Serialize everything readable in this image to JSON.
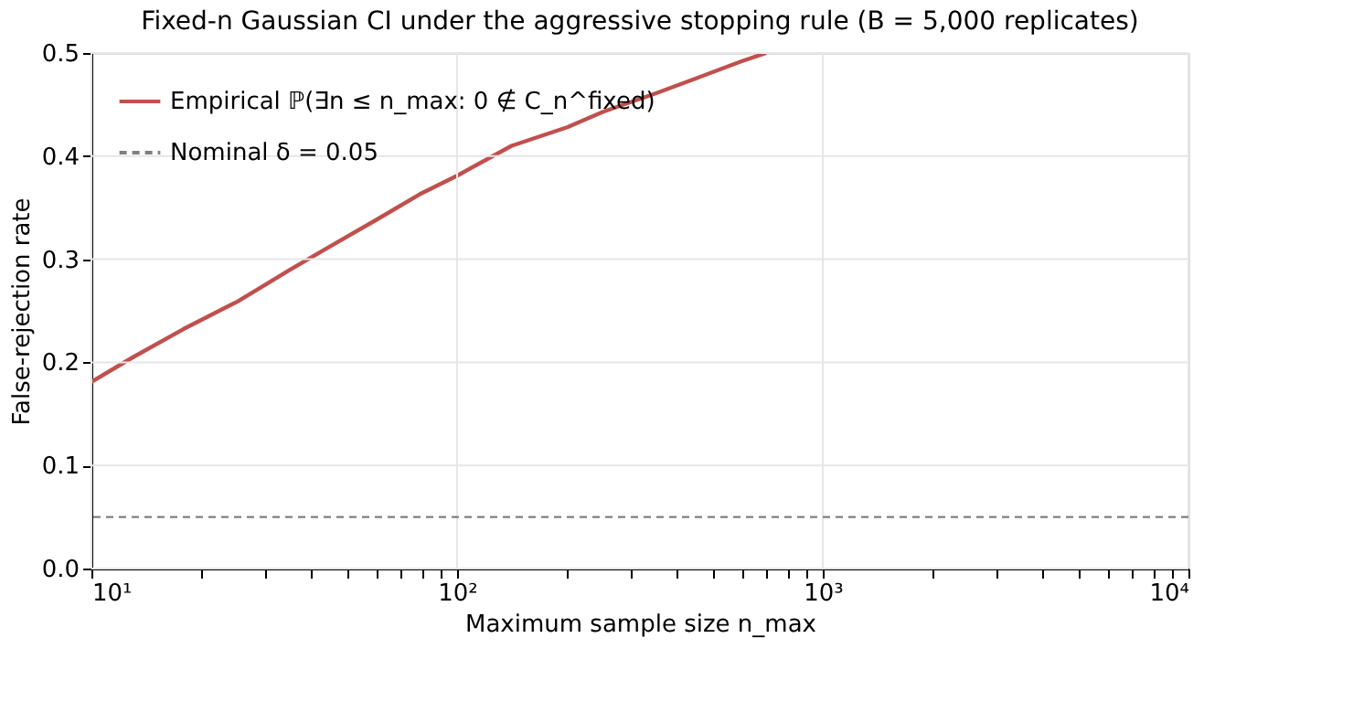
{
  "chart_data": {
    "type": "line",
    "title": "Fixed-n Gaussian CI under the aggressive stopping rule (B = 5,000 replicates)",
    "xlabel": "Maximum sample size n_max",
    "ylabel": "False-rejection rate",
    "x": [
      10,
      13,
      17.8,
      25.1,
      35,
      44.7,
      60,
      79,
      100,
      141,
      200,
      251,
      350,
      447,
      600,
      700
    ],
    "series": [
      {
        "name": "Empirical ℙ(∃n ≤ n_max: 0 ∉ C_n^fixed)",
        "color": "#c0504d",
        "values": [
          0.181,
          0.205,
          0.232,
          0.259,
          0.29,
          0.312,
          0.338,
          0.363,
          0.381,
          0.41,
          0.428,
          0.443,
          0.461,
          0.475,
          0.492,
          0.5
        ]
      }
    ],
    "ref_lines": [
      {
        "axis": "y",
        "value": 0.05,
        "label": "Nominal δ = 0.05",
        "color": "#808080",
        "line_style": "dashed"
      }
    ],
    "xlim": [
      10,
      10000
    ],
    "ylim": [
      0,
      0.5
    ],
    "log": "x",
    "xticks": [
      {
        "value": 10,
        "label": "10¹"
      },
      {
        "value": 20,
        "label": null
      },
      {
        "value": 30,
        "label": null
      },
      {
        "value": 40,
        "label": null
      },
      {
        "value": 50,
        "label": null
      },
      {
        "value": 60,
        "label": null
      },
      {
        "value": 70,
        "label": null
      },
      {
        "value": 80,
        "label": null
      },
      {
        "value": 90,
        "label": null
      },
      {
        "value": 100,
        "label": "10²"
      },
      {
        "value": 200,
        "label": null
      },
      {
        "value": 300,
        "label": null
      },
      {
        "value": 400,
        "label": null
      },
      {
        "value": 500,
        "label": null
      },
      {
        "value": 600,
        "label": null
      },
      {
        "value": 700,
        "label": null
      },
      {
        "value": 800,
        "label": null
      },
      {
        "value": 900,
        "label": null
      },
      {
        "value": 1000,
        "label": "10³"
      },
      {
        "value": 2000,
        "label": null
      },
      {
        "value": 3000,
        "label": null
      },
      {
        "value": 4000,
        "label": null
      },
      {
        "value": 5000,
        "label": null
      },
      {
        "value": 6000,
        "label": null
      },
      {
        "value": 7000,
        "label": null
      },
      {
        "value": 8000,
        "label": null
      },
      {
        "value": 9000,
        "label": null
      },
      {
        "value": 10000,
        "label": "10⁴"
      }
    ],
    "yticks": [
      {
        "value": 0,
        "label": "0.0"
      },
      {
        "value": 0.1,
        "label": "0.1"
      },
      {
        "value": 0.2,
        "label": "0.2"
      },
      {
        "value": 0.3,
        "label": "0.3"
      },
      {
        "value": 0.4,
        "label": "0.4"
      },
      {
        "value": 0.5,
        "label": "0.5"
      }
    ],
    "grid": true,
    "legend": "top left",
    "line_style": "solid",
    "marker": "none"
  }
}
